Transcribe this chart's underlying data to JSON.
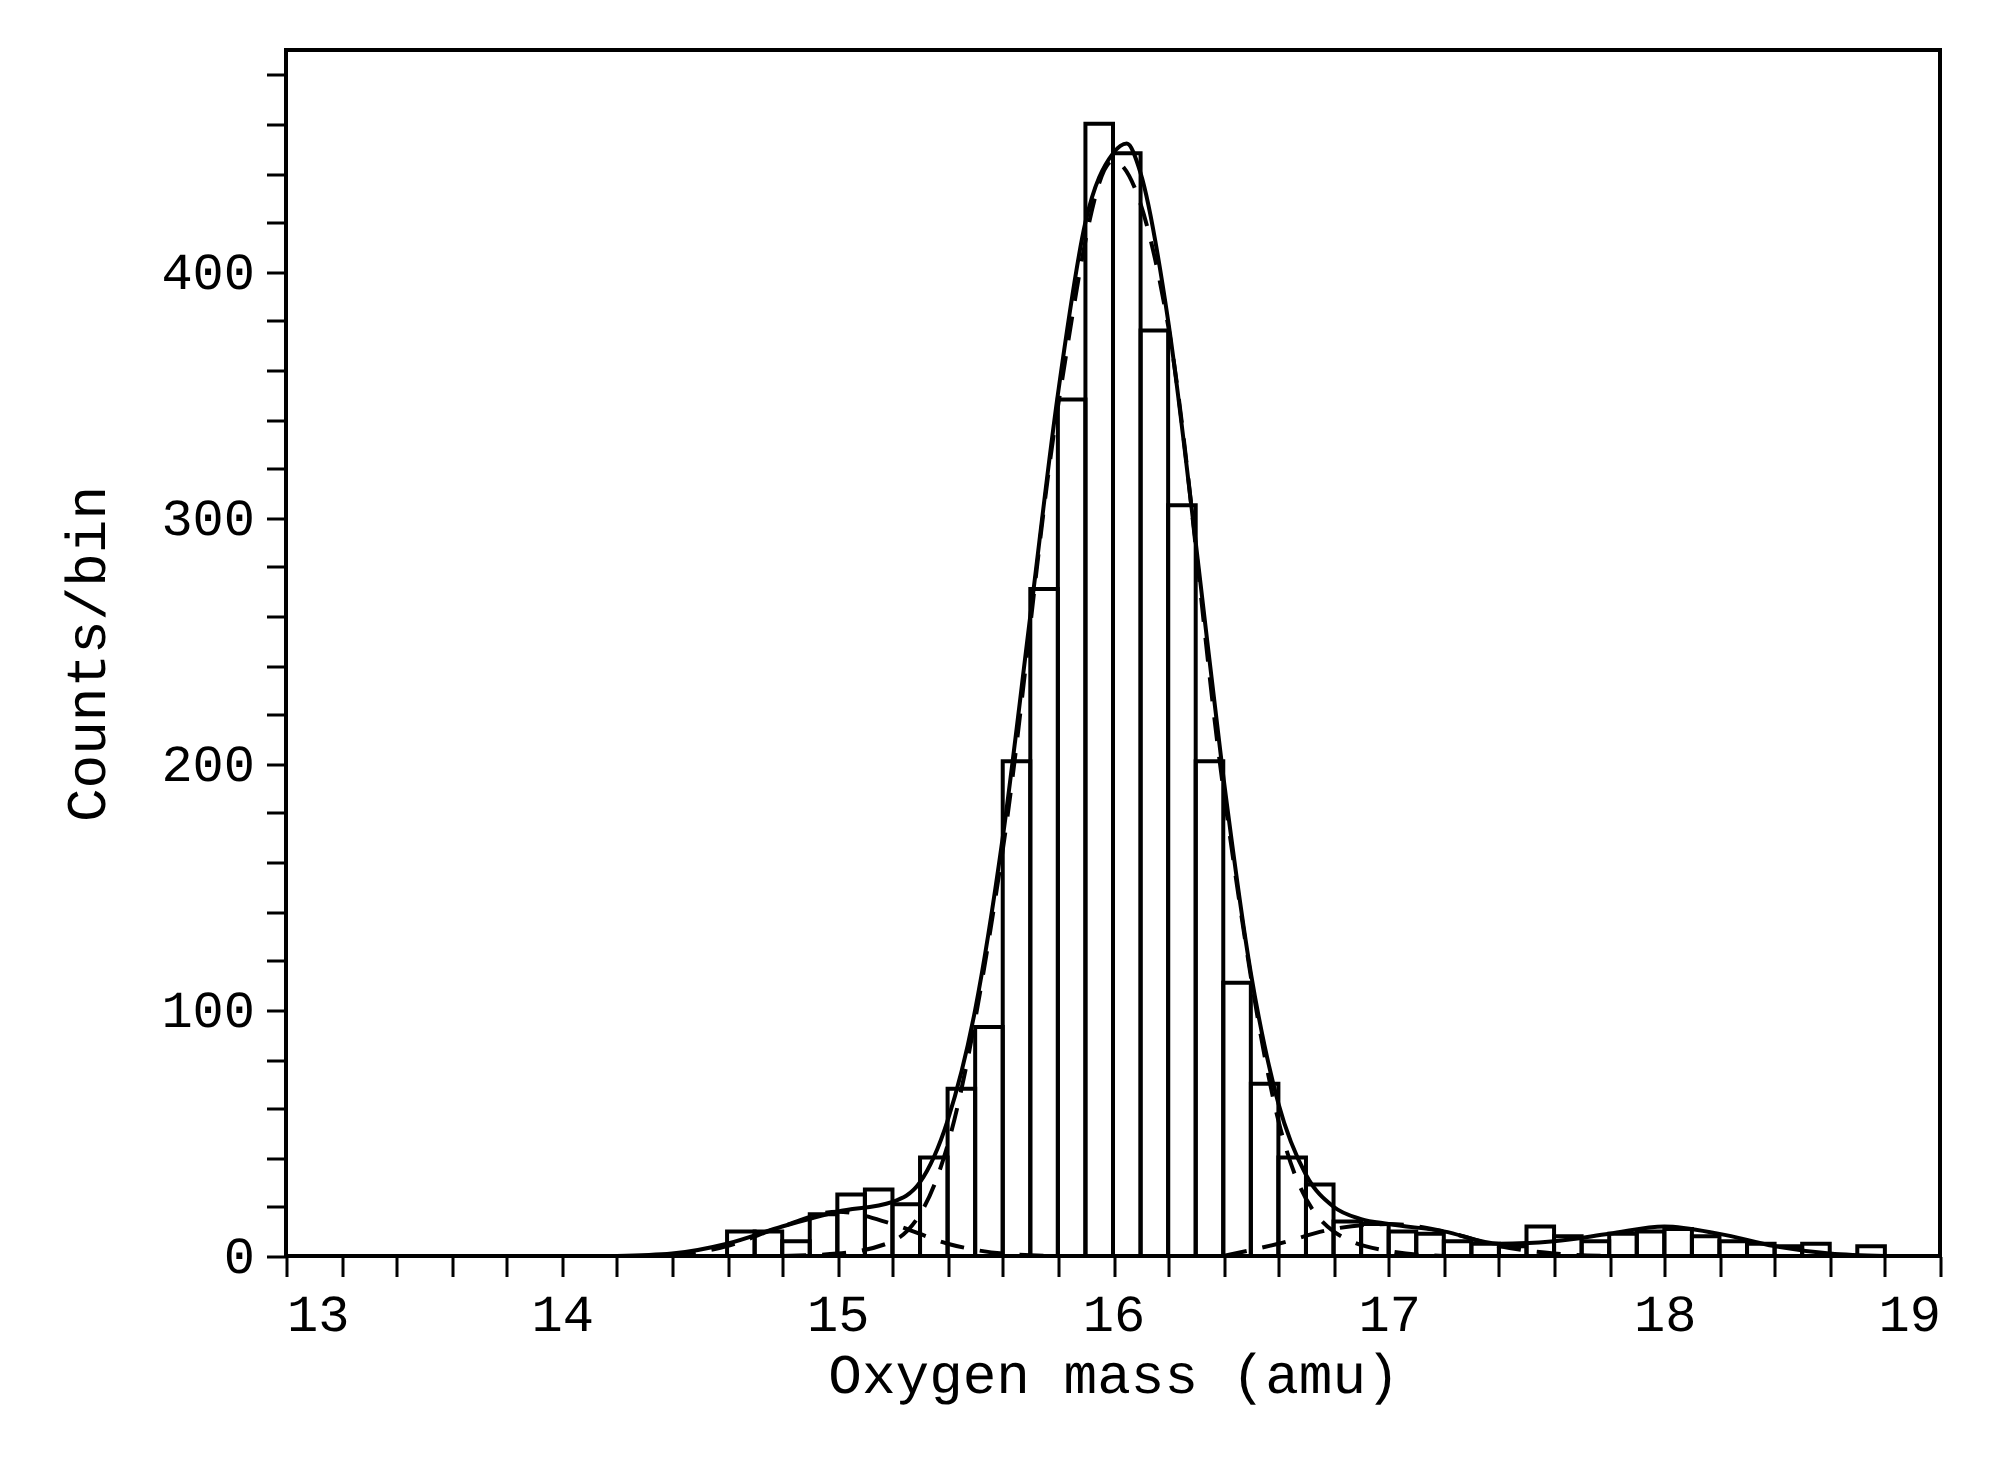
{
  "chart_data": {
    "type": "histogram",
    "xlabel": "Oxygen mass (amu)",
    "ylabel": "Counts/bin",
    "color": "#000000",
    "bins": [
      14.6,
      14.7,
      14.8,
      14.9,
      15.0,
      15.1,
      15.2,
      15.3,
      15.4,
      15.5,
      15.6,
      15.7,
      15.8,
      15.9,
      16.0,
      16.1,
      16.2,
      16.3,
      16.4,
      16.5,
      16.6,
      16.7,
      16.8,
      16.9,
      17.0,
      17.1,
      17.2,
      17.3,
      17.4,
      17.5,
      17.6,
      17.7,
      17.8,
      17.9,
      18.0,
      18.1,
      18.2,
      18.3,
      18.4,
      18.5,
      18.6,
      18.7,
      18.8
    ],
    "values": [
      10,
      10,
      6,
      17,
      25,
      27,
      21,
      40,
      68,
      93,
      201,
      271,
      348,
      460,
      448,
      376,
      305,
      201,
      111,
      70,
      40,
      29,
      14,
      13,
      10,
      9,
      6,
      5,
      4,
      12,
      8,
      6,
      9,
      10,
      11,
      8,
      6,
      5,
      4,
      5,
      0,
      4
    ],
    "series": [
      {
        "type": "line",
        "color": "#000000",
        "line_style": "solid",
        "x": [
          14.2,
          14.4,
          14.6,
          14.8,
          15.0,
          15.2,
          15.3,
          15.4,
          15.5,
          15.6,
          15.7,
          15.8,
          15.9,
          16.0,
          16.05,
          16.1,
          16.2,
          16.3,
          16.4,
          16.5,
          16.6,
          16.7,
          16.8,
          16.9,
          17.0,
          17.2,
          17.4,
          17.6,
          17.8,
          18.0,
          18.2,
          18.4,
          18.6,
          18.8
        ],
        "values": [
          0,
          1,
          5,
          12,
          18,
          22,
          30,
          55,
          100,
          170,
          260,
          350,
          420,
          448,
          452,
          440,
          380,
          290,
          195,
          115,
          62,
          33,
          20,
          15,
          13,
          10,
          5,
          6,
          9,
          12,
          9,
          4,
          1,
          0
        ]
      },
      {
        "type": "line",
        "color": "#000000",
        "line_style": "dashed",
        "x": [
          14.4,
          14.6,
          14.8,
          15.0,
          15.2,
          15.4,
          15.6,
          15.8
        ],
        "values": [
          0,
          4,
          12,
          18,
          13,
          5,
          1,
          0
        ]
      },
      {
        "type": "line",
        "color": "#000000",
        "line_style": "dashed",
        "x": [
          14.8,
          15.0,
          15.2,
          15.4,
          15.6,
          15.8,
          16.0,
          16.2,
          16.4,
          16.6,
          16.8,
          17.0,
          17.2
        ],
        "values": [
          0,
          1,
          6,
          45,
          165,
          345,
          445,
          378,
          190,
          55,
          10,
          2,
          0
        ]
      },
      {
        "type": "line",
        "color": "#000000",
        "line_style": "dashed",
        "x": [
          16.4,
          16.6,
          16.8,
          17.0,
          17.2,
          17.4,
          17.6,
          17.8
        ],
        "values": [
          0,
          5,
          11,
          13,
          10,
          4,
          1,
          0
        ]
      }
    ],
    "xlim": [
      13,
      19
    ],
    "xticks": [
      13,
      {
        "value": 13.2,
        "label": null
      },
      {
        "value": 13.4,
        "label": null
      },
      {
        "value": 13.6,
        "label": null
      },
      {
        "value": 13.8,
        "label": null
      },
      14,
      {
        "value": 14.2,
        "label": null
      },
      {
        "value": 14.4,
        "label": null
      },
      {
        "value": 14.6,
        "label": null
      },
      {
        "value": 14.8,
        "label": null
      },
      15,
      {
        "value": 15.2,
        "label": null
      },
      {
        "value": 15.4,
        "label": null
      },
      {
        "value": 15.6,
        "label": null
      },
      {
        "value": 15.8,
        "label": null
      },
      16,
      {
        "value": 16.2,
        "label": null
      },
      {
        "value": 16.4,
        "label": null
      },
      {
        "value": 16.6,
        "label": null
      },
      {
        "value": 16.8,
        "label": null
      },
      17,
      {
        "value": 17.2,
        "label": null
      },
      {
        "value": 17.4,
        "label": null
      },
      {
        "value": 17.6,
        "label": null
      },
      {
        "value": 17.8,
        "label": null
      },
      18,
      {
        "value": 18.2,
        "label": null
      },
      {
        "value": 18.4,
        "label": null
      },
      {
        "value": 18.6,
        "label": null
      },
      {
        "value": 18.8,
        "label": null
      },
      19
    ],
    "ylim": [
      0,
      490
    ],
    "yticks": [
      0,
      {
        "value": 20,
        "label": null
      },
      {
        "value": 40,
        "label": null
      },
      {
        "value": 60,
        "label": null
      },
      {
        "value": 80,
        "label": null
      },
      100,
      {
        "value": 120,
        "label": null
      },
      {
        "value": 140,
        "label": null
      },
      {
        "value": 160,
        "label": null
      },
      {
        "value": 180,
        "label": null
      },
      200,
      {
        "value": 220,
        "label": null
      },
      {
        "value": 240,
        "label": null
      },
      {
        "value": 260,
        "label": null
      },
      {
        "value": 280,
        "label": null
      },
      300,
      {
        "value": 320,
        "label": null
      },
      {
        "value": 340,
        "label": null
      },
      {
        "value": 360,
        "label": null
      },
      {
        "value": 380,
        "label": null
      },
      400,
      {
        "value": 420,
        "label": null
      },
      {
        "value": 440,
        "label": null
      },
      {
        "value": 460,
        "label": null
      },
      {
        "value": 480,
        "label": null
      }
    ]
  }
}
